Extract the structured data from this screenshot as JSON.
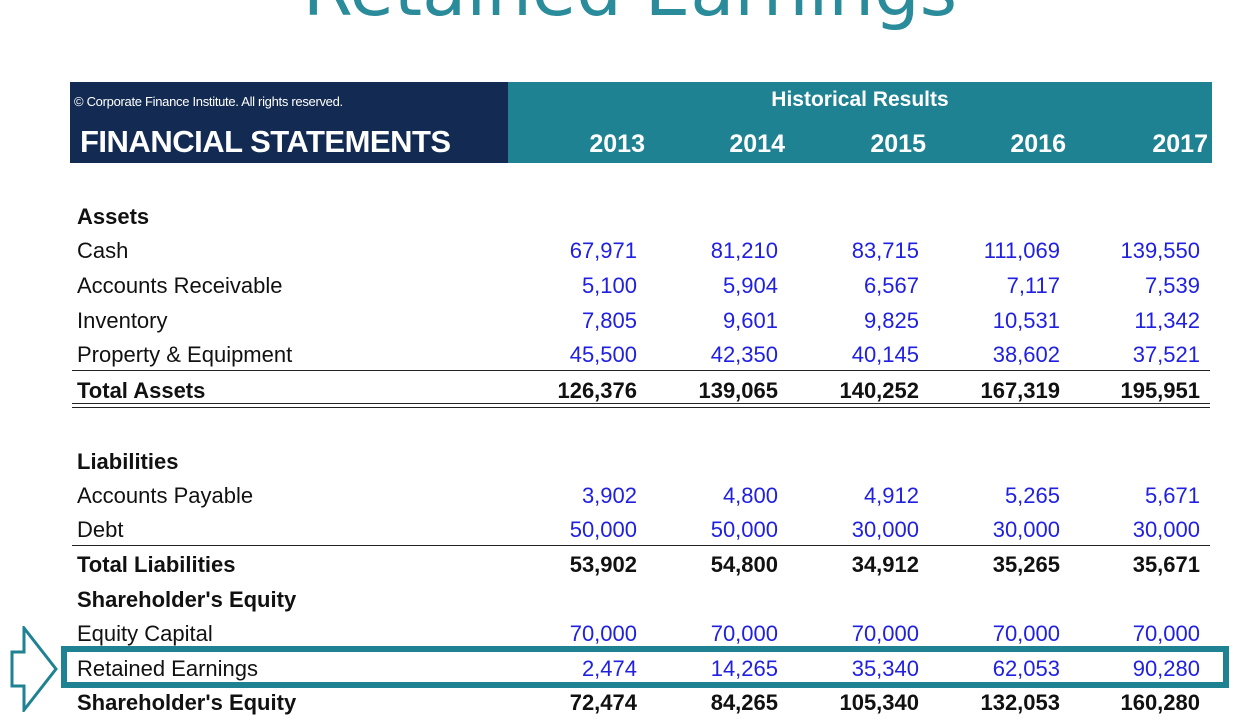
{
  "slide_title": "Retained Earnings",
  "header": {
    "copyright": "© Corporate Finance Institute. All rights reserved.",
    "title": "FINANCIAL STATEMENTS",
    "group_label": "Historical Results",
    "years": [
      "2013",
      "2014",
      "2015",
      "2016",
      "2017"
    ]
  },
  "rows": [
    {
      "label": "Assets",
      "values": []
    },
    {
      "label": "Cash",
      "values": [
        "67,971",
        "81,210",
        "83,715",
        "111,069",
        "139,550"
      ]
    },
    {
      "label": "Accounts Receivable",
      "values": [
        "5,100",
        "5,904",
        "6,567",
        "7,117",
        "7,539"
      ]
    },
    {
      "label": "Inventory",
      "values": [
        "7,805",
        "9,601",
        "9,825",
        "10,531",
        "11,342"
      ]
    },
    {
      "label": "Property & Equipment",
      "values": [
        "45,500",
        "42,350",
        "40,145",
        "38,602",
        "37,521"
      ]
    },
    {
      "label": "Total Assets",
      "values": [
        "126,376",
        "139,065",
        "140,252",
        "167,319",
        "195,951"
      ]
    },
    {
      "label": "Liabilities",
      "values": []
    },
    {
      "label": "Accounts Payable",
      "values": [
        "3,902",
        "4,800",
        "4,912",
        "5,265",
        "5,671"
      ]
    },
    {
      "label": "Debt",
      "values": [
        "50,000",
        "50,000",
        "30,000",
        "30,000",
        "30,000"
      ]
    },
    {
      "label": "Total Liabilities",
      "values": [
        "53,902",
        "54,800",
        "34,912",
        "35,265",
        "35,671"
      ]
    },
    {
      "label": "Shareholder's Equity",
      "values": []
    },
    {
      "label": "Equity Capital",
      "values": [
        "70,000",
        "70,000",
        "70,000",
        "70,000",
        "70,000"
      ]
    },
    {
      "label": "Retained Earnings",
      "values": [
        "2,474",
        "14,265",
        "35,340",
        "62,053",
        "90,280"
      ]
    },
    {
      "label": "Shareholder's Equity",
      "values": [
        "72,474",
        "84,265",
        "105,340",
        "132,053",
        "160,280"
      ]
    }
  ],
  "colors": {
    "accent": "#1f8293",
    "navy": "#132b52",
    "input_blue": "#2020e0"
  }
}
